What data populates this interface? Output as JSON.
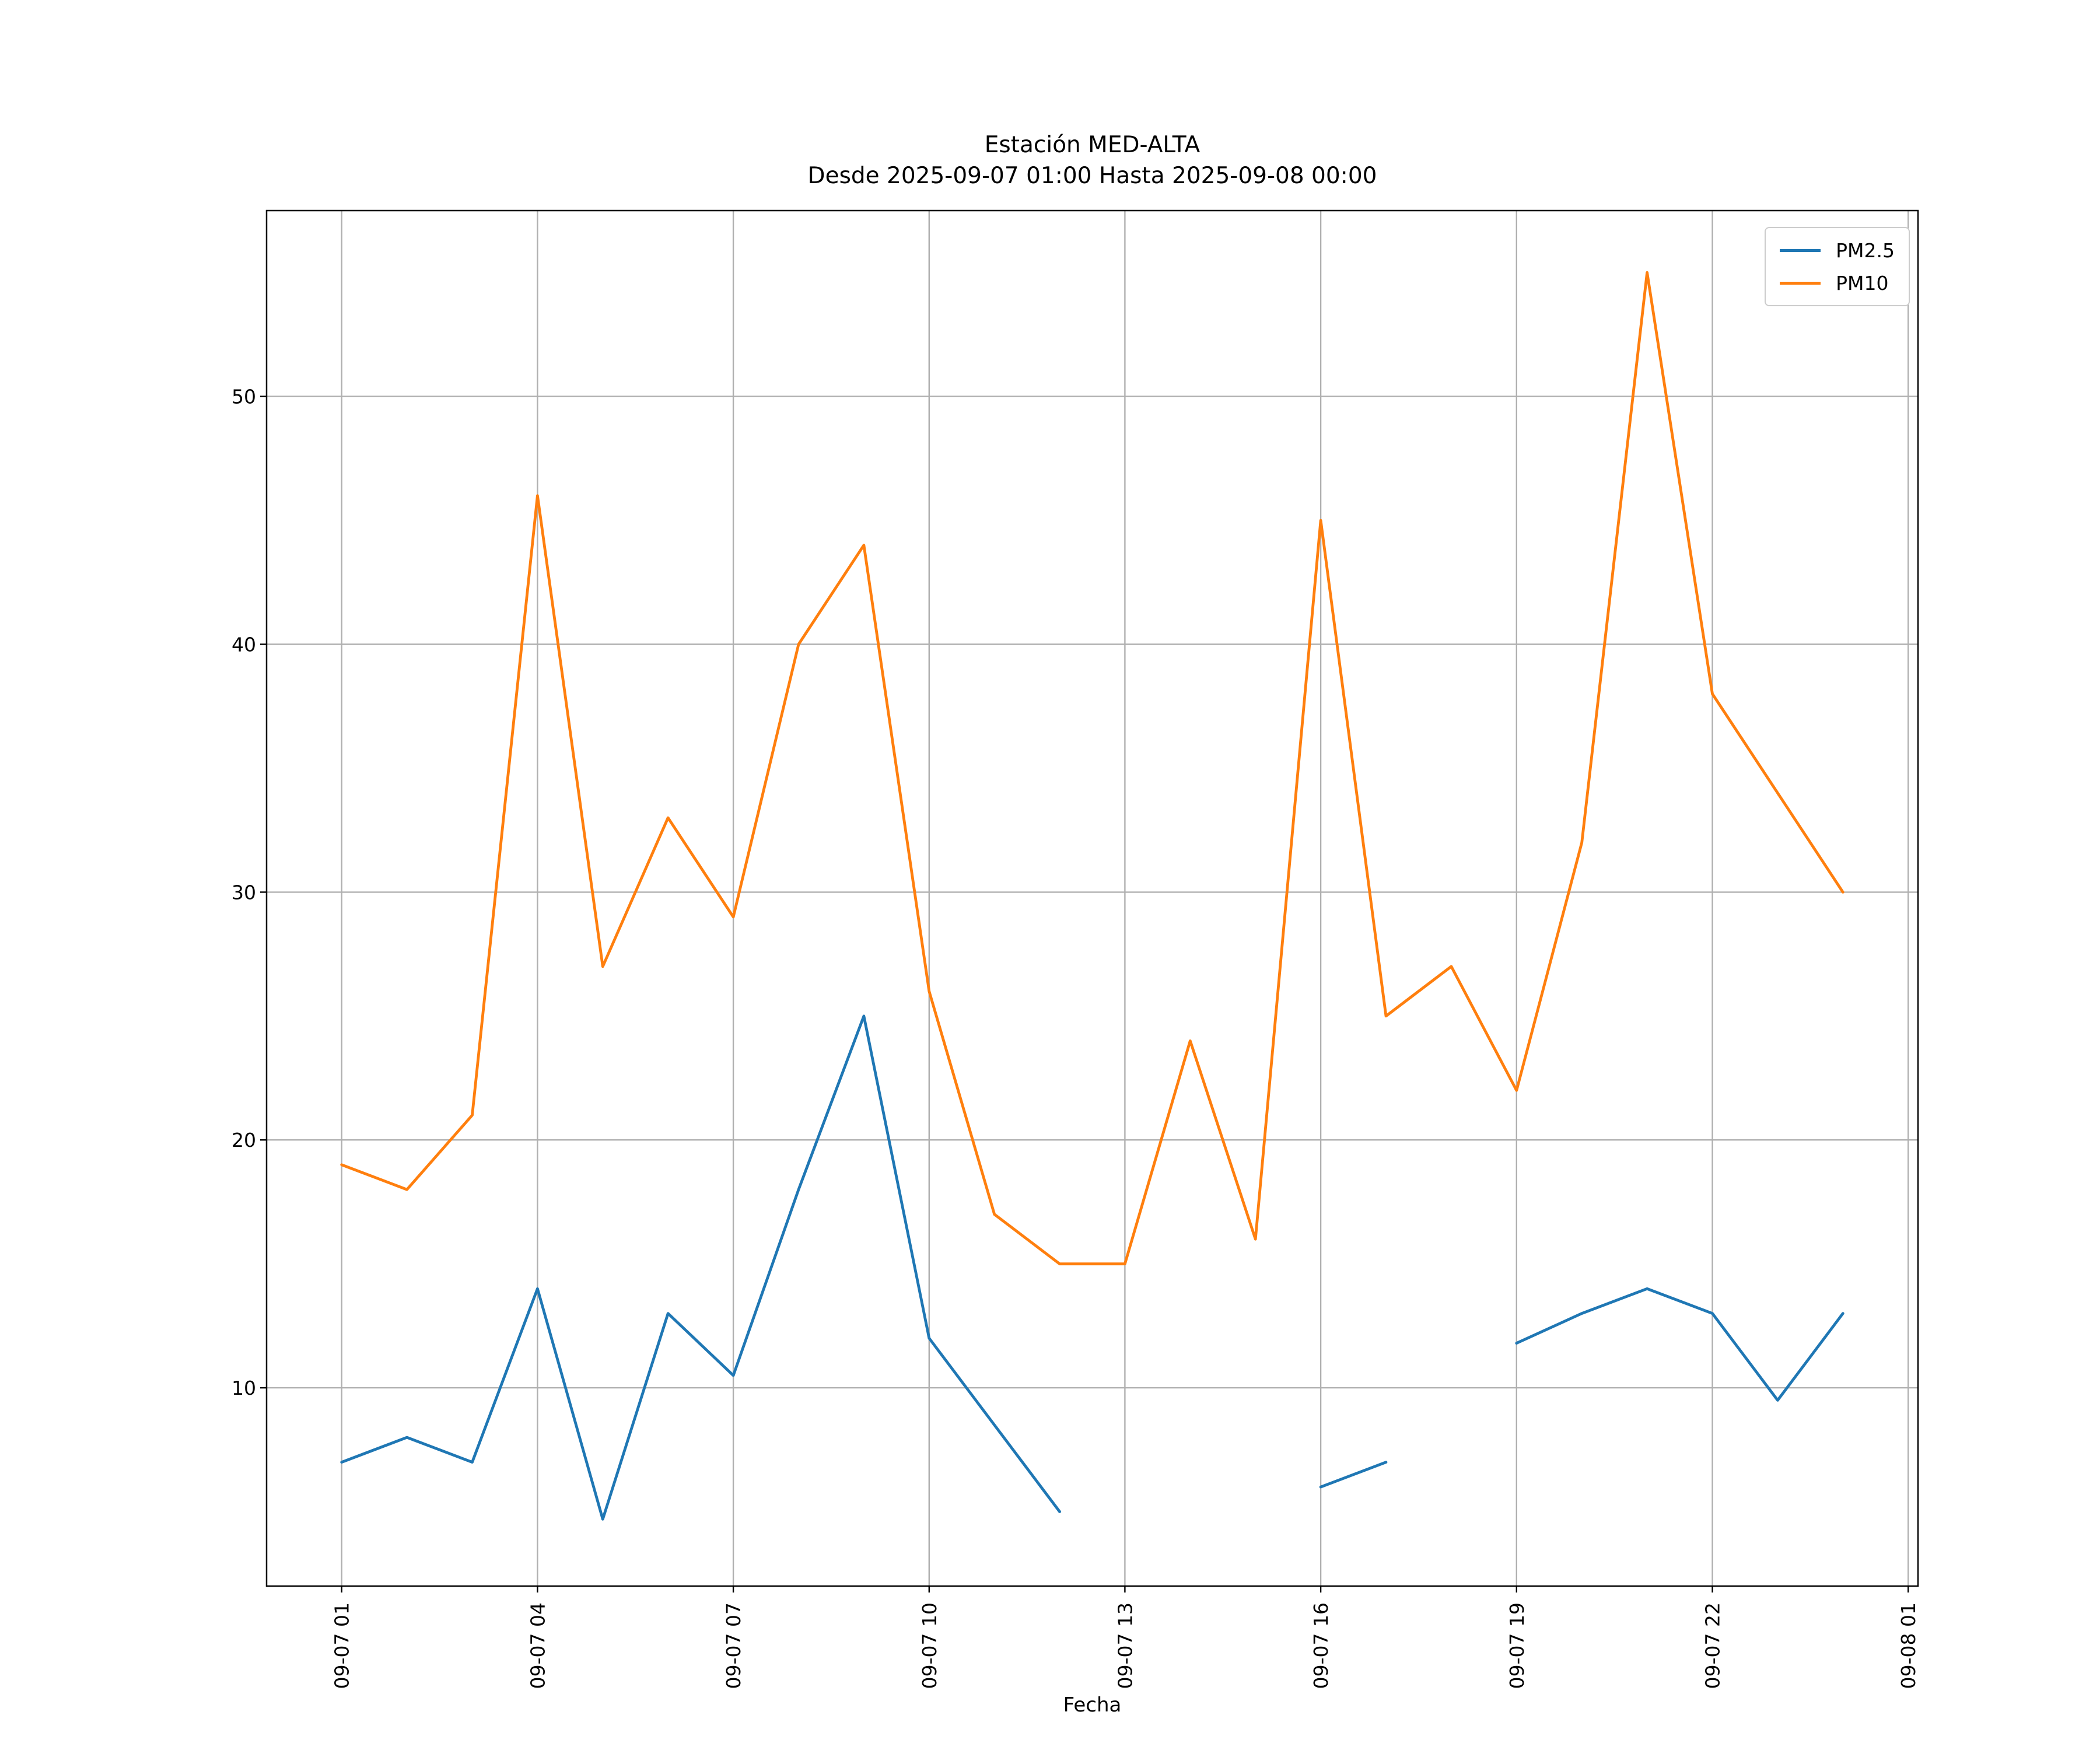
{
  "title": {
    "line1": "Estación MED-ALTA",
    "line2": "Desde 2025-09-07 01:00 Hasta 2025-09-08 00:00"
  },
  "chart_data": {
    "type": "line",
    "title": "Estación MED-ALTA\nDesde 2025-09-07 01:00 Hasta 2025-09-08 00:00",
    "xlabel": "Fecha",
    "ylabel": "",
    "grid": true,
    "legend_position": "upper right",
    "xlim": [
      -0.15,
      25.15
    ],
    "ylim": [
      2,
      57.5
    ],
    "x_hours": [
      1,
      2,
      3,
      4,
      5,
      6,
      7,
      8,
      9,
      10,
      11,
      12,
      13,
      14,
      15,
      16,
      17,
      18,
      19,
      20,
      21,
      22,
      23,
      24
    ],
    "x_ticks": [
      {
        "hour": 1,
        "label": "09-07 01"
      },
      {
        "hour": 4,
        "label": "09-07 04"
      },
      {
        "hour": 7,
        "label": "09-07 07"
      },
      {
        "hour": 10,
        "label": "09-07 10"
      },
      {
        "hour": 13,
        "label": "09-07 13"
      },
      {
        "hour": 16,
        "label": "09-07 16"
      },
      {
        "hour": 19,
        "label": "09-07 19"
      },
      {
        "hour": 22,
        "label": "09-07 22"
      },
      {
        "hour": 25,
        "label": "09-08 01"
      }
    ],
    "y_ticks": [
      10,
      20,
      30,
      40,
      50
    ],
    "series": [
      {
        "name": "PM2.5",
        "color": "#1f77b4",
        "values": [
          7,
          8,
          7,
          14,
          4.7,
          13,
          10.5,
          18,
          25,
          12,
          8.5,
          5,
          null,
          null,
          null,
          6,
          7,
          null,
          11.8,
          13,
          14,
          13,
          9.5,
          13
        ]
      },
      {
        "name": "PM10",
        "color": "#ff7f0e",
        "values": [
          19,
          18,
          21,
          46,
          27,
          33,
          29,
          40,
          44,
          26,
          17,
          15,
          15,
          24,
          16,
          45,
          25,
          27,
          22,
          32,
          55,
          38,
          34,
          30
        ]
      }
    ]
  },
  "legend": {
    "items": [
      {
        "label": "PM2.5",
        "color": "#1f77b4"
      },
      {
        "label": "PM10",
        "color": "#ff7f0e"
      }
    ]
  }
}
